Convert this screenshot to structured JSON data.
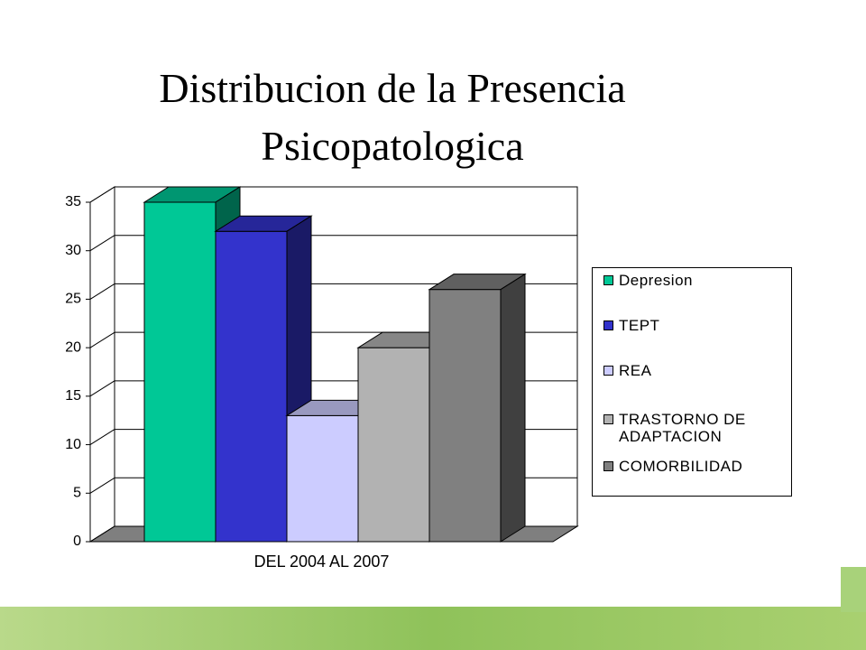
{
  "chart_data": {
    "type": "bar3d",
    "title": "Distribucion de la Presencia Psicopatologica",
    "categories": [
      "DEL 2004 AL 2007"
    ],
    "series": [
      {
        "name": "Depresion",
        "color": "#00c896",
        "values": [
          35
        ]
      },
      {
        "name": "TEPT",
        "color": "#3333cc",
        "values": [
          32
        ]
      },
      {
        "name": "REA",
        "color": "#ccccff",
        "values": [
          13
        ]
      },
      {
        "name": "TRASTORNO DE ADAPTACION",
        "color": "#b2b2b2",
        "values": [
          20
        ]
      },
      {
        "name": "COMORBILIDAD",
        "color": "#808080",
        "values": [
          26
        ]
      }
    ],
    "ylim": [
      0,
      35
    ],
    "yticks": [
      0,
      5,
      10,
      15,
      20,
      25,
      30,
      35
    ],
    "grid": true,
    "legend": "right"
  }
}
